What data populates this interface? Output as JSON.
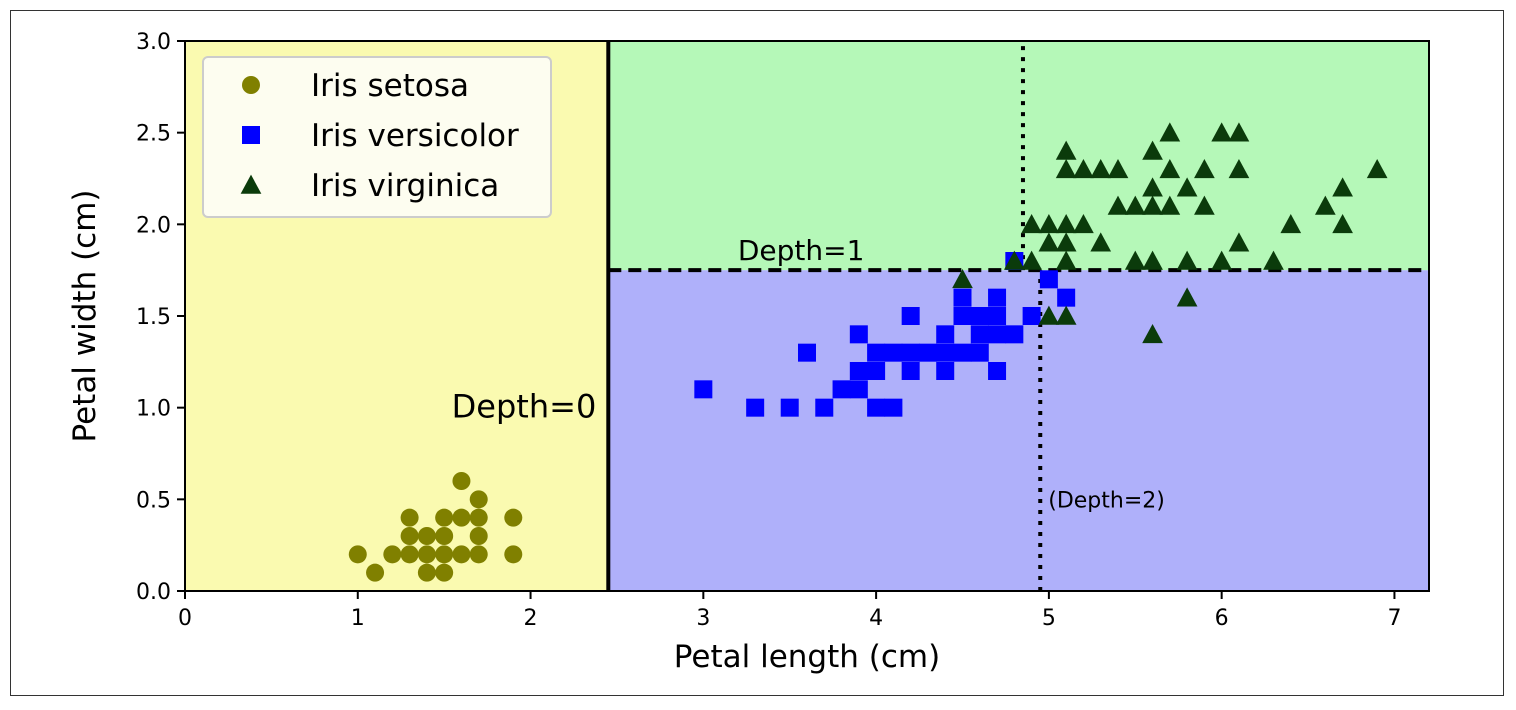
{
  "chart_data": {
    "type": "scatter",
    "xlabel": "Petal length (cm)",
    "ylabel": "Petal width (cm)",
    "xlim": [
      0,
      7.2
    ],
    "ylim": [
      0,
      3.0
    ],
    "xticks": [
      0,
      1,
      2,
      3,
      4,
      5,
      6,
      7
    ],
    "yticks": [
      0.0,
      0.5,
      1.0,
      1.5,
      2.0,
      2.5,
      3.0
    ],
    "grid": false,
    "legend_position": "top-left",
    "regions": [
      {
        "class": "Iris setosa",
        "x": [
          0,
          2.45
        ],
        "y": [
          0,
          3.0
        ],
        "color": "#fafab0"
      },
      {
        "class": "Iris versicolor",
        "x": [
          2.45,
          7.2
        ],
        "y": [
          0,
          1.75
        ],
        "color": "#afb0fa"
      },
      {
        "class": "Iris virginica",
        "x": [
          2.45,
          7.2
        ],
        "y": [
          1.75,
          3.0
        ],
        "color": "#b5f8b8"
      }
    ],
    "boundaries": [
      {
        "label": "Depth=0",
        "orientation": "vertical",
        "x": 2.45,
        "y": [
          0,
          3.0
        ],
        "style": "solid"
      },
      {
        "label": "Depth=1",
        "orientation": "horizontal",
        "y": 1.75,
        "x": [
          2.45,
          7.2
        ],
        "style": "dashed"
      },
      {
        "label": "(Depth=2)",
        "orientation": "vertical",
        "x": 4.95,
        "y": [
          0,
          1.75
        ],
        "style": "dotted"
      },
      {
        "label": "",
        "orientation": "vertical",
        "x": 4.85,
        "y": [
          1.75,
          3.0
        ],
        "style": "dotted"
      }
    ],
    "series": [
      {
        "name": "Iris setosa",
        "marker": "circle",
        "color": "#808000",
        "points": [
          [
            1.0,
            0.2
          ],
          [
            1.1,
            0.1
          ],
          [
            1.2,
            0.2
          ],
          [
            1.3,
            0.2
          ],
          [
            1.3,
            0.3
          ],
          [
            1.3,
            0.4
          ],
          [
            1.4,
            0.1
          ],
          [
            1.4,
            0.2
          ],
          [
            1.4,
            0.3
          ],
          [
            1.5,
            0.1
          ],
          [
            1.5,
            0.2
          ],
          [
            1.5,
            0.3
          ],
          [
            1.5,
            0.4
          ],
          [
            1.6,
            0.2
          ],
          [
            1.6,
            0.4
          ],
          [
            1.6,
            0.6
          ],
          [
            1.7,
            0.2
          ],
          [
            1.7,
            0.3
          ],
          [
            1.7,
            0.4
          ],
          [
            1.7,
            0.5
          ],
          [
            1.9,
            0.2
          ],
          [
            1.9,
            0.4
          ]
        ]
      },
      {
        "name": "Iris versicolor",
        "marker": "square",
        "color": "#0000ff",
        "points": [
          [
            3.0,
            1.1
          ],
          [
            3.3,
            1.0
          ],
          [
            3.5,
            1.0
          ],
          [
            3.6,
            1.3
          ],
          [
            3.7,
            1.0
          ],
          [
            3.8,
            1.1
          ],
          [
            3.9,
            1.1
          ],
          [
            3.9,
            1.2
          ],
          [
            3.9,
            1.4
          ],
          [
            4.0,
            1.0
          ],
          [
            4.0,
            1.2
          ],
          [
            4.0,
            1.3
          ],
          [
            4.1,
            1.0
          ],
          [
            4.1,
            1.3
          ],
          [
            4.2,
            1.2
          ],
          [
            4.2,
            1.3
          ],
          [
            4.2,
            1.5
          ],
          [
            4.3,
            1.3
          ],
          [
            4.4,
            1.2
          ],
          [
            4.4,
            1.3
          ],
          [
            4.4,
            1.4
          ],
          [
            4.5,
            1.3
          ],
          [
            4.5,
            1.5
          ],
          [
            4.5,
            1.6
          ],
          [
            4.6,
            1.3
          ],
          [
            4.6,
            1.4
          ],
          [
            4.6,
            1.5
          ],
          [
            4.7,
            1.2
          ],
          [
            4.7,
            1.4
          ],
          [
            4.7,
            1.5
          ],
          [
            4.7,
            1.6
          ],
          [
            4.8,
            1.4
          ],
          [
            4.8,
            1.8
          ],
          [
            4.9,
            1.5
          ],
          [
            5.0,
            1.7
          ],
          [
            5.1,
            1.6
          ]
        ]
      },
      {
        "name": "Iris virginica",
        "marker": "triangle",
        "color": "#0b3b0b",
        "points": [
          [
            4.5,
            1.7
          ],
          [
            4.8,
            1.8
          ],
          [
            4.9,
            1.8
          ],
          [
            4.9,
            2.0
          ],
          [
            5.0,
            1.5
          ],
          [
            5.0,
            1.9
          ],
          [
            5.0,
            2.0
          ],
          [
            5.1,
            1.5
          ],
          [
            5.1,
            1.8
          ],
          [
            5.1,
            1.9
          ],
          [
            5.1,
            2.0
          ],
          [
            5.1,
            2.3
          ],
          [
            5.1,
            2.4
          ],
          [
            5.2,
            2.0
          ],
          [
            5.2,
            2.3
          ],
          [
            5.3,
            1.9
          ],
          [
            5.3,
            2.3
          ],
          [
            5.4,
            2.1
          ],
          [
            5.4,
            2.3
          ],
          [
            5.5,
            1.8
          ],
          [
            5.5,
            2.1
          ],
          [
            5.6,
            1.4
          ],
          [
            5.6,
            1.8
          ],
          [
            5.6,
            2.1
          ],
          [
            5.6,
            2.2
          ],
          [
            5.6,
            2.4
          ],
          [
            5.7,
            2.1
          ],
          [
            5.7,
            2.3
          ],
          [
            5.7,
            2.5
          ],
          [
            5.8,
            1.6
          ],
          [
            5.8,
            1.8
          ],
          [
            5.8,
            2.2
          ],
          [
            5.9,
            2.1
          ],
          [
            5.9,
            2.3
          ],
          [
            6.0,
            1.8
          ],
          [
            6.0,
            2.5
          ],
          [
            6.1,
            1.9
          ],
          [
            6.1,
            2.3
          ],
          [
            6.1,
            2.5
          ],
          [
            6.3,
            1.8
          ],
          [
            6.4,
            2.0
          ],
          [
            6.6,
            2.1
          ],
          [
            6.7,
            2.0
          ],
          [
            6.7,
            2.2
          ],
          [
            6.9,
            2.3
          ]
        ]
      }
    ]
  }
}
